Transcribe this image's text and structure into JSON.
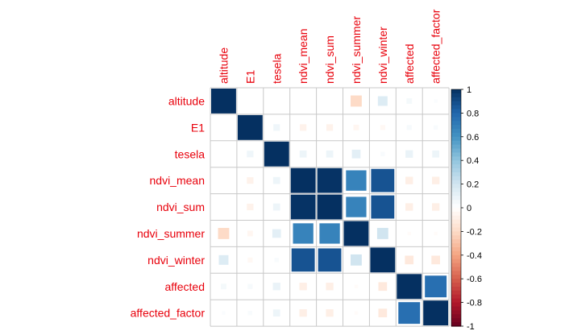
{
  "chart_data": {
    "type": "heatmap",
    "variables": [
      "altitude",
      "E1",
      "tesela",
      "ndvi_mean",
      "ndvi_sum",
      "ndvi_summer",
      "ndvi_winter",
      "affected",
      "affected_factor"
    ],
    "matrix": [
      [
        1.0,
        0.0,
        0.0,
        0.0,
        0.0,
        -0.2,
        0.15,
        0.05,
        0.02
      ],
      [
        0.0,
        1.0,
        0.07,
        -0.07,
        -0.07,
        -0.05,
        -0.04,
        0.04,
        0.03
      ],
      [
        0.0,
        0.07,
        1.0,
        0.08,
        0.08,
        0.12,
        0.03,
        0.09,
        0.08
      ],
      [
        0.0,
        -0.07,
        0.08,
        1.0,
        0.99,
        0.67,
        0.87,
        -0.09,
        -0.09
      ],
      [
        0.0,
        -0.07,
        0.08,
        0.99,
        1.0,
        0.67,
        0.87,
        -0.09,
        -0.09
      ],
      [
        -0.2,
        -0.05,
        0.12,
        0.67,
        0.67,
        1.0,
        0.2,
        -0.02,
        -0.02
      ],
      [
        0.15,
        -0.04,
        0.03,
        0.87,
        0.87,
        0.2,
        1.0,
        -0.12,
        -0.12
      ],
      [
        0.05,
        0.04,
        0.09,
        -0.09,
        -0.09,
        -0.02,
        -0.12,
        1.0,
        0.76
      ],
      [
        0.02,
        0.03,
        0.08,
        -0.09,
        -0.09,
        -0.02,
        -0.12,
        0.76,
        1.0
      ]
    ],
    "colorbar": {
      "range": [
        -1,
        1
      ],
      "ticks": [
        "1",
        "0.8",
        "0.6",
        "0.4",
        "0.2",
        "0",
        "-0.2",
        "-0.4",
        "-0.6",
        "-0.8",
        "-1"
      ],
      "colors": {
        "negative": "#67001f",
        "mid": "#ffffff",
        "positive": "#053061"
      }
    },
    "label_color": "#e8000b",
    "grid": true
  }
}
